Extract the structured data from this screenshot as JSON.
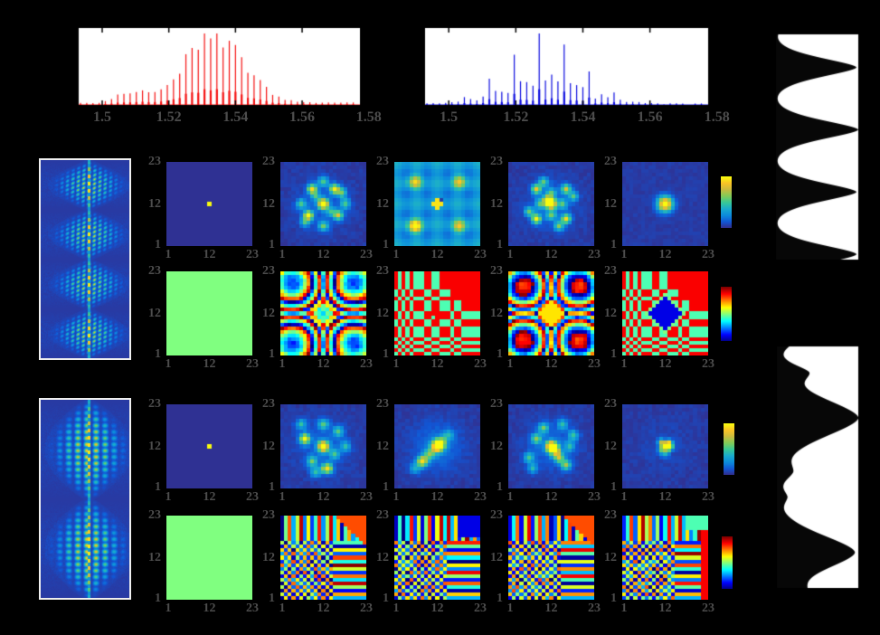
{
  "figure_title": "",
  "labels": {
    "heatmap_x": [
      "1",
      "12",
      "23"
    ],
    "heatmap_y": [
      "23",
      "12",
      "1"
    ],
    "spectrum_x": [
      "1.5",
      "1.52",
      "1.54",
      "1.56",
      "1.58"
    ]
  },
  "colors": {
    "background": "#000000",
    "plot_background": "#ffffff",
    "frame": "#000000",
    "tick_label": "#4d4d4d",
    "spectrum_red": "#f51111",
    "spectrum_blue": "#0d0de0",
    "pulse_fill": "#070707",
    "heatmap_low": "#362d8c",
    "phase_flat_green": "#80ff80"
  },
  "chart_data": {
    "type": "composite-figure",
    "description": "Frequency-comb spectra (top), x-t spectrograms (left), 23x23 amplitude (parula) and phase (jet) mode heatmaps with colorbars (center), temporal pulse intensity profiles (right)",
    "spectra": [
      {
        "series": "red",
        "type": "line",
        "color": "#f51111",
        "x_range": [
          1.4924,
          1.5779
        ],
        "x_tick_values": [
          1.5,
          1.52,
          1.54,
          1.56,
          1.58
        ],
        "x_tick_labels": [
          "1.5",
          "1.52",
          "1.54",
          "1.56",
          "1.58"
        ],
        "comb_start": 1.4935,
        "comb_end": 1.576,
        "comb_spacing": 0.00186,
        "envelope_center": 1.5335,
        "envelope_sigma": 0.0125,
        "modulation": "smooth"
      },
      {
        "series": "blue",
        "type": "line",
        "color": "#0d0de0",
        "x_range": [
          1.4924,
          1.5779
        ],
        "x_tick_values": [
          1.5,
          1.52,
          1.54,
          1.56,
          1.58
        ],
        "x_tick_labels": [
          "1.5",
          "1.52",
          "1.54",
          "1.56",
          "1.58"
        ],
        "comb_start": 1.4935,
        "comb_end": 1.576,
        "comb_spacing": 0.00186,
        "envelope_center": 1.5285,
        "envelope_sigma": 0.016,
        "modulation": "every-4th-tall"
      }
    ],
    "pulse_profiles": [
      {
        "id": "pulse-train-top",
        "orientation": "vertical",
        "power": 1.6,
        "peaks": [
          {
            "c": -0.11,
            "w": 0.06,
            "a": 0.9
          },
          {
            "c": 0.155,
            "w": 0.06,
            "a": 0.95
          },
          {
            "c": 0.425,
            "w": 0.06,
            "a": 0.97
          },
          {
            "c": 0.695,
            "w": 0.06,
            "a": 0.95
          },
          {
            "c": 0.965,
            "w": 0.06,
            "a": 0.95
          }
        ]
      },
      {
        "id": "pulse-train-bottom",
        "orientation": "vertical",
        "power": 1.7,
        "peaks": [
          {
            "c": 0.3,
            "w": 0.115,
            "a": 0.97
          },
          {
            "c": 0.845,
            "w": 0.105,
            "a": 0.93
          },
          {
            "c": 0.115,
            "w": 0.045,
            "a": 0.3
          },
          {
            "c": 0.52,
            "w": 0.05,
            "a": 0.17
          },
          {
            "c": 0.62,
            "w": 0.04,
            "a": 0.12
          },
          {
            "c": -0.02,
            "w": 0.05,
            "a": 0.25
          },
          {
            "c": 1.02,
            "w": 0.06,
            "a": 0.3
          }
        ]
      }
    ],
    "spectrograms": [
      {
        "id": "spectrogram-top",
        "pattern": "eyes",
        "periods": 4
      },
      {
        "id": "spectrogram-bottom",
        "pattern": "ovals",
        "periods": 2
      }
    ],
    "heatmap_rows": [
      {
        "name": "amplitude-1",
        "colormap": "parula",
        "colorbar": true,
        "x_ticks": [
          1,
          12,
          23
        ],
        "y_ticks": [
          1,
          12,
          23
        ],
        "panels": [
          {
            "pattern": "delta"
          },
          {
            "pattern": "blobs",
            "seed": 3,
            "s2": 1.7,
            "halo": 0.1,
            "centers": [
              [
                0,
                0,
                1
              ],
              [
                -3,
                4,
                0.8
              ],
              [
                3,
                4,
                0.85
              ],
              [
                -4,
                -3,
                0.9
              ],
              [
                4,
                -3,
                0.7
              ],
              [
                0,
                6,
                0.45
              ],
              [
                0,
                -6,
                0.5
              ],
              [
                -6,
                0,
                0.45
              ],
              [
                6,
                0,
                0.45
              ],
              [
                5,
                3,
                0.5
              ],
              [
                -5,
                -5,
                0.4
              ],
              [
                -2,
                2,
                0.35
              ],
              [
                2,
                -2,
                0.35
              ]
            ]
          },
          {
            "pattern": "grid",
            "seed": 5,
            "period": 5.5,
            "corners": [
              [
                -6,
                6,
                0.55
              ],
              [
                6,
                6,
                0.5
              ],
              [
                -6,
                -6,
                0.8
              ],
              [
                6,
                -6,
                0.5
              ]
            ]
          },
          {
            "pattern": "blobs",
            "seed": 7,
            "s2": 1.6,
            "halo": 0.12,
            "centers": [
              [
                0,
                0,
                1
              ],
              [
                -1,
                1,
                0.7
              ],
              [
                -4,
                4,
                0.75
              ],
              [
                4,
                4,
                0.7
              ],
              [
                -4,
                -4,
                0.85
              ],
              [
                4,
                -4,
                0.8
              ],
              [
                -2,
                6,
                0.5
              ],
              [
                2,
                -6,
                0.55
              ],
              [
                -6,
                -2,
                0.5
              ],
              [
                6,
                2,
                0.45
              ],
              [
                0,
                3,
                0.4
              ],
              [
                0,
                -3,
                0.45
              ],
              [
                3,
                0,
                0.4
              ],
              [
                -3,
                0,
                0.4
              ]
            ]
          },
          {
            "pattern": "gauss",
            "seed": 9,
            "s2": 4.0
          }
        ]
      },
      {
        "name": "phase-1",
        "colormap": "jet",
        "colorbar": true,
        "x_ticks": [
          1,
          12,
          23
        ],
        "y_ticks": [
          1,
          12,
          23
        ],
        "panels": [
          {
            "pattern": "flat"
          },
          {
            "pattern": "rings",
            "k": 0.03,
            "off": 0.3,
            "seed": 11
          },
          {
            "pattern": "checker",
            "seed": 13,
            "centerdot": true
          },
          {
            "pattern": "rings",
            "k": 0.034,
            "off": 0.45,
            "diamond": 0.65,
            "seed": 15
          },
          {
            "pattern": "checker",
            "seed": 17,
            "diamond": true
          }
        ]
      },
      {
        "name": "amplitude-2",
        "colormap": "parula",
        "colorbar": true,
        "x_ticks": [
          1,
          12,
          23
        ],
        "y_ticks": [
          1,
          12,
          23
        ],
        "panels": [
          {
            "pattern": "delta"
          },
          {
            "pattern": "blobs",
            "seed": 21,
            "s2": 1.9,
            "halo": 0.12,
            "centers": [
              [
                0,
                0,
                1
              ],
              [
                -5,
                2,
                0.9
              ],
              [
                1,
                -6,
                0.85
              ],
              [
                4,
                4,
                0.45
              ],
              [
                -3,
                -4,
                0.5
              ],
              [
                -6,
                6,
                0.4
              ],
              [
                6,
                0,
                0.35
              ],
              [
                0,
                6,
                0.45
              ],
              [
                -2,
                -7,
                0.4
              ],
              [
                3,
                -2,
                0.4
              ]
            ]
          },
          {
            "pattern": "blobs",
            "seed": 23,
            "s2": 2.2,
            "halo": 0.15,
            "centers": [
              [
                0,
                0,
                0.95
              ],
              [
                -4,
                -4,
                0.8
              ],
              [
                1,
                1,
                0.5
              ],
              [
                -2,
                -2,
                0.45
              ],
              [
                -6,
                -6,
                0.3
              ],
              [
                3,
                3,
                0.3
              ]
            ]
          },
          {
            "pattern": "blobs",
            "seed": 25,
            "s2": 1.9,
            "halo": 0.12,
            "centers": [
              [
                0,
                0,
                1
              ],
              [
                1,
                -1,
                0.7
              ],
              [
                2,
                -3,
                0.6
              ],
              [
                4,
                -5,
                0.6
              ],
              [
                -4,
                2,
                0.55
              ],
              [
                -2,
                5,
                0.5
              ],
              [
                6,
                3,
                0.4
              ],
              [
                -6,
                -3,
                0.45
              ],
              [
                3,
                6,
                0.4
              ],
              [
                -5,
                -6,
                0.35
              ],
              [
                5,
                0,
                0.35
              ]
            ]
          },
          {
            "pattern": "blobs",
            "seed": 27,
            "s2": 0.9,
            "halo": 0.04,
            "centers": [
              [
                0,
                0,
                0.8
              ],
              [
                1,
                0,
                1
              ],
              [
                -1,
                1,
                0.55
              ],
              [
                1,
                1,
                0.4
              ],
              [
                -1,
                -1,
                0.35
              ],
              [
                0,
                -2,
                0.3
              ]
            ]
          }
        ]
      },
      {
        "name": "phase-2",
        "colormap": "jet",
        "colorbar": true,
        "x_ticks": [
          1,
          12,
          23
        ],
        "y_ticks": [
          1,
          12,
          23
        ],
        "panels": [
          {
            "pattern": "flat"
          },
          {
            "pattern": "noisy",
            "seed": 31,
            "vf": 0.37,
            "hf": 0.41,
            "corner": "orange"
          },
          {
            "pattern": "noisy",
            "seed": 33,
            "vf": 0.41,
            "hf": 0.37,
            "corner": "blue"
          },
          {
            "pattern": "noisy",
            "seed": 35,
            "vf": 0.35,
            "hf": 0.43,
            "corner": "orange"
          },
          {
            "pattern": "noisy",
            "seed": 37,
            "vf": 0.39,
            "hf": 0.39,
            "corner": "redbar"
          }
        ]
      }
    ]
  }
}
